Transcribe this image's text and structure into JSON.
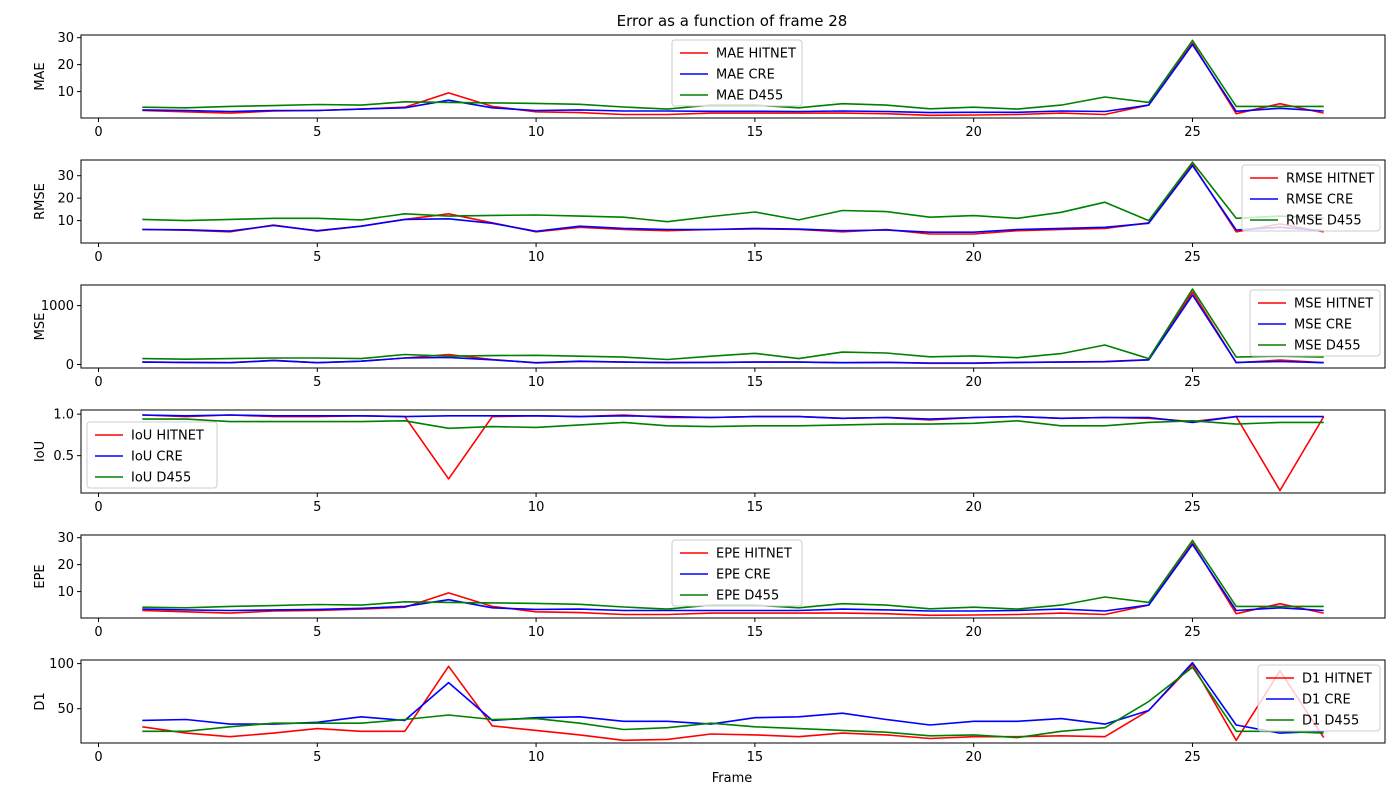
{
  "figure": {
    "title": "Error as a function of frame 28",
    "xlabel": "Frame"
  },
  "colors": {
    "HITNET": "#ff0000",
    "CRE": "#0000ff",
    "D455": "#008000"
  },
  "chart_data": [
    {
      "type": "line",
      "ylabel": "MAE",
      "xlim": [
        -0.4,
        29.4
      ],
      "ylim": [
        0.2,
        31
      ],
      "xticks": [
        0,
        5,
        10,
        15,
        20,
        25
      ],
      "yticks": [
        10,
        20,
        30
      ],
      "legend": "top-center",
      "x": [
        1,
        2,
        3,
        4,
        5,
        6,
        7,
        8,
        9,
        10,
        11,
        12,
        13,
        14,
        15,
        16,
        17,
        18,
        19,
        20,
        21,
        22,
        23,
        24,
        25,
        26,
        27,
        28
      ],
      "series": [
        {
          "name": "MAE HITNET",
          "color": "HITNET",
          "values": [
            3,
            2.5,
            2,
            2.8,
            3,
            3.5,
            4.2,
            9.5,
            4.5,
            2.5,
            2.2,
            1.5,
            1.5,
            2,
            2,
            2,
            2,
            1.8,
            1.2,
            1.3,
            1.5,
            2,
            1.5,
            5,
            28,
            1.8,
            5.5,
            2
          ]
        },
        {
          "name": "MAE CRE",
          "color": "CRE",
          "values": [
            3.2,
            3,
            2.6,
            3,
            3,
            3.5,
            4,
            6.8,
            4,
            3,
            3.2,
            2.8,
            2.8,
            2.7,
            2.7,
            2.6,
            2.8,
            2.6,
            2.2,
            2.3,
            2.3,
            2.8,
            2.6,
            5,
            27.5,
            2.7,
            3.8,
            2.8
          ]
        },
        {
          "name": "MAE D455",
          "color": "D455",
          "values": [
            4.2,
            4,
            4.5,
            4.8,
            5.2,
            5,
            6.2,
            6,
            5.8,
            5.6,
            5.3,
            4.3,
            3.5,
            5,
            5,
            4,
            5.5,
            5,
            3.6,
            4.2,
            3.5,
            5,
            8,
            6,
            29,
            4.5,
            4.5,
            4.5
          ]
        }
      ]
    },
    {
      "type": "line",
      "ylabel": "RMSE",
      "xlim": [
        -0.4,
        29.4
      ],
      "ylim": [
        0,
        37
      ],
      "xticks": [
        0,
        5,
        10,
        15,
        20,
        25
      ],
      "yticks": [
        10,
        20,
        30
      ],
      "legend": "top-right",
      "x": [
        1,
        2,
        3,
        4,
        5,
        6,
        7,
        8,
        9,
        10,
        11,
        12,
        13,
        14,
        15,
        16,
        17,
        18,
        19,
        20,
        21,
        22,
        23,
        24,
        25,
        26,
        27,
        28
      ],
      "series": [
        {
          "name": "RMSE HITNET",
          "color": "HITNET",
          "values": [
            6,
            5.7,
            5,
            8,
            5.3,
            7.5,
            10.5,
            13,
            9,
            5,
            7,
            6,
            5.5,
            6,
            6.3,
            6,
            5,
            6,
            4,
            4,
            5.5,
            6,
            6.5,
            9,
            35,
            5,
            8.5,
            5
          ]
        },
        {
          "name": "RMSE CRE",
          "color": "CRE",
          "values": [
            6,
            5.9,
            5.3,
            7.8,
            5.5,
            7.5,
            10.5,
            10.8,
            8.8,
            5.2,
            7.5,
            6.5,
            6,
            6,
            6.5,
            6.2,
            5.5,
            5.8,
            4.8,
            4.8,
            6,
            6.5,
            7,
            8.8,
            34.5,
            5.8,
            7,
            5.5
          ]
        },
        {
          "name": "RMSE D455",
          "color": "D455",
          "values": [
            10.5,
            10,
            10.5,
            11,
            11,
            10.3,
            13,
            12,
            12.3,
            12.5,
            12,
            11.5,
            9.5,
            11.8,
            13.8,
            10.3,
            14.5,
            14,
            11.5,
            12.2,
            11,
            13.7,
            18.2,
            10,
            36,
            11,
            12,
            11
          ]
        }
      ]
    },
    {
      "type": "line",
      "ylabel": "MSE",
      "xlim": [
        -0.4,
        29.4
      ],
      "ylim": [
        -60,
        1350
      ],
      "xticks": [
        0,
        5,
        10,
        15,
        20,
        25
      ],
      "yticks": [
        0,
        1000
      ],
      "legend": "top-right",
      "x": [
        1,
        2,
        3,
        4,
        5,
        6,
        7,
        8,
        9,
        10,
        11,
        12,
        13,
        14,
        15,
        16,
        17,
        18,
        19,
        20,
        21,
        22,
        23,
        24,
        25,
        26,
        27,
        28
      ],
      "series": [
        {
          "name": "MSE HITNET",
          "color": "HITNET",
          "values": [
            40,
            35,
            30,
            70,
            30,
            55,
            110,
            170,
            85,
            25,
            50,
            40,
            30,
            35,
            40,
            40,
            30,
            35,
            20,
            20,
            35,
            40,
            45,
            80,
            1230,
            30,
            75,
            30
          ]
        },
        {
          "name": "MSE CRE",
          "color": "CRE",
          "values": [
            40,
            35,
            30,
            65,
            30,
            55,
            110,
            120,
            80,
            30,
            55,
            40,
            35,
            35,
            40,
            40,
            30,
            35,
            25,
            25,
            35,
            40,
            50,
            80,
            1180,
            35,
            50,
            30
          ]
        },
        {
          "name": "MSE D455",
          "color": "D455",
          "values": [
            100,
            90,
            100,
            110,
            110,
            100,
            170,
            140,
            150,
            155,
            140,
            125,
            85,
            140,
            190,
            100,
            210,
            195,
            130,
            145,
            115,
            185,
            330,
            100,
            1280,
            125,
            140,
            125
          ]
        }
      ]
    },
    {
      "type": "line",
      "ylabel": "IoU",
      "xlim": [
        -0.4,
        29.4
      ],
      "ylim": [
        0.05,
        1.05
      ],
      "xticks": [
        0,
        5,
        10,
        15,
        20,
        25
      ],
      "yticks": [
        0.5,
        1.0
      ],
      "ytick_labels": [
        "0.5",
        "1.0"
      ],
      "legend": "bottom-left",
      "x": [
        1,
        2,
        3,
        4,
        5,
        6,
        7,
        8,
        9,
        10,
        11,
        12,
        13,
        14,
        15,
        16,
        17,
        18,
        19,
        20,
        21,
        22,
        23,
        24,
        25,
        26,
        27,
        28
      ],
      "series": [
        {
          "name": "IoU HITNET",
          "color": "HITNET",
          "values": [
            0.99,
            0.97,
            0.99,
            0.97,
            0.97,
            0.98,
            0.97,
            0.22,
            0.97,
            0.98,
            0.97,
            0.99,
            0.96,
            0.96,
            0.97,
            0.97,
            0.95,
            0.96,
            0.93,
            0.96,
            0.97,
            0.95,
            0.96,
            0.95,
            0.91,
            0.97,
            0.08,
            0.97
          ]
        },
        {
          "name": "IoU CRE",
          "color": "CRE",
          "values": [
            0.99,
            0.98,
            0.99,
            0.98,
            0.98,
            0.98,
            0.97,
            0.98,
            0.98,
            0.98,
            0.97,
            0.98,
            0.97,
            0.96,
            0.97,
            0.97,
            0.95,
            0.96,
            0.94,
            0.96,
            0.97,
            0.95,
            0.96,
            0.96,
            0.9,
            0.97,
            0.97,
            0.97
          ]
        },
        {
          "name": "IoU D455",
          "color": "D455",
          "values": [
            0.94,
            0.94,
            0.91,
            0.91,
            0.91,
            0.91,
            0.92,
            0.83,
            0.85,
            0.84,
            0.87,
            0.9,
            0.86,
            0.85,
            0.86,
            0.86,
            0.87,
            0.88,
            0.88,
            0.89,
            0.92,
            0.86,
            0.86,
            0.9,
            0.92,
            0.88,
            0.9,
            0.9
          ]
        }
      ]
    },
    {
      "type": "line",
      "ylabel": "EPE",
      "xlim": [
        -0.4,
        29.4
      ],
      "ylim": [
        0.2,
        31
      ],
      "xticks": [
        0,
        5,
        10,
        15,
        20,
        25
      ],
      "yticks": [
        10,
        20,
        30
      ],
      "legend": "top-center",
      "x": [
        1,
        2,
        3,
        4,
        5,
        6,
        7,
        8,
        9,
        10,
        11,
        12,
        13,
        14,
        15,
        16,
        17,
        18,
        19,
        20,
        21,
        22,
        23,
        24,
        25,
        26,
        27,
        28
      ],
      "series": [
        {
          "name": "EPE HITNET",
          "color": "HITNET",
          "values": [
            3,
            2.5,
            2,
            2.8,
            3,
            3.5,
            4.2,
            9.5,
            4.5,
            2.5,
            2.2,
            1.5,
            1.5,
            2,
            2,
            2,
            2,
            1.8,
            1.2,
            1.3,
            1.5,
            2,
            1.5,
            5,
            28,
            1.8,
            5.5,
            2
          ]
        },
        {
          "name": "EPE CRE",
          "color": "CRE",
          "values": [
            3.5,
            3.2,
            3,
            3.2,
            3.4,
            3.8,
            4.5,
            7,
            4,
            3.4,
            3.5,
            3,
            3,
            3,
            3,
            3,
            3.5,
            3.2,
            2.8,
            2.8,
            3,
            3.5,
            2.8,
            5,
            27.5,
            3,
            4,
            3
          ]
        },
        {
          "name": "EPE D455",
          "color": "D455",
          "values": [
            4.2,
            4,
            4.5,
            4.8,
            5.2,
            5,
            6.2,
            6,
            5.8,
            5.6,
            5.3,
            4.3,
            3.5,
            5,
            5,
            4,
            5.5,
            5,
            3.6,
            4.2,
            3.5,
            5,
            8,
            6,
            29,
            4.5,
            4.5,
            4.5
          ]
        }
      ]
    },
    {
      "type": "line",
      "ylabel": "D1",
      "xlim": [
        -0.4,
        29.4
      ],
      "ylim": [
        12,
        104
      ],
      "xticks": [
        0,
        5,
        10,
        15,
        20,
        25
      ],
      "yticks": [
        50,
        100
      ],
      "legend": "top-right",
      "x": [
        1,
        2,
        3,
        4,
        5,
        6,
        7,
        8,
        9,
        10,
        11,
        12,
        13,
        14,
        15,
        16,
        17,
        18,
        19,
        20,
        21,
        22,
        23,
        24,
        25,
        26,
        27,
        28
      ],
      "series": [
        {
          "name": "D1 HITNET",
          "color": "HITNET",
          "values": [
            30,
            23,
            19,
            23,
            28,
            25,
            25,
            97,
            31,
            26,
            21,
            15,
            16,
            22,
            21,
            19,
            23,
            21,
            17,
            19,
            19,
            20,
            19,
            48,
            99,
            15,
            92,
            18
          ]
        },
        {
          "name": "D1 CRE",
          "color": "CRE",
          "values": [
            37,
            38,
            33,
            33,
            35,
            41,
            37,
            79,
            37,
            40,
            41,
            36,
            36,
            33,
            40,
            41,
            45,
            38,
            32,
            36,
            36,
            39,
            33,
            48,
            101,
            32,
            23,
            25
          ]
        },
        {
          "name": "D1 D455",
          "color": "D455",
          "values": [
            25,
            25,
            30,
            34,
            34,
            34,
            38,
            43,
            38,
            39,
            34,
            27,
            29,
            34,
            30,
            28,
            26,
            24,
            20,
            21,
            18,
            25,
            29,
            58,
            96,
            25,
            25,
            23
          ]
        }
      ]
    }
  ]
}
